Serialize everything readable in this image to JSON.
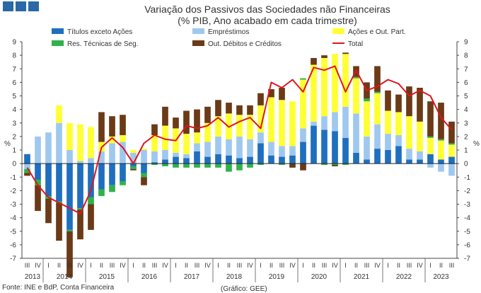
{
  "chart_data": {
    "type": "bar",
    "title": "Variação dos Passivos das Sociedades não Financeiras",
    "subtitle": "(% PIB, Ano acabado em cada trimestre)",
    "ylabel_left": "%",
    "ylabel_right": "%",
    "ylim": [
      -7,
      9
    ],
    "yticks": [
      -7,
      -6,
      -5,
      -4,
      -3,
      -2,
      -1,
      0,
      1,
      2,
      3,
      4,
      5,
      6,
      7,
      8,
      9
    ],
    "quarter_labels": [
      "III",
      "IV",
      "I",
      "II",
      "III",
      "IV",
      "I",
      "II",
      "III",
      "IV",
      "I",
      "II",
      "III",
      "IV",
      "I",
      "II",
      "III",
      "IV",
      "I",
      "II",
      "III",
      "IV",
      "I",
      "II",
      "III",
      "IV",
      "I",
      "II",
      "III",
      "IV",
      "I",
      "II",
      "III",
      "IV",
      "I",
      "II",
      "III",
      "IV",
      "I",
      "II",
      "III"
    ],
    "year_labels": [
      {
        "label": "2013",
        "start": 0,
        "end": 1
      },
      {
        "label": "2014",
        "start": 2,
        "end": 5
      },
      {
        "label": "2015",
        "start": 6,
        "end": 9
      },
      {
        "label": "2016",
        "start": 10,
        "end": 13
      },
      {
        "label": "2017",
        "start": 14,
        "end": 17
      },
      {
        "label": "2018",
        "start": 18,
        "end": 21
      },
      {
        "label": "2019",
        "start": 22,
        "end": 25
      },
      {
        "label": "2020",
        "start": 26,
        "end": 29
      },
      {
        "label": "2021",
        "start": 30,
        "end": 33
      },
      {
        "label": "2022",
        "start": 34,
        "end": 37
      },
      {
        "label": "2023",
        "start": 38,
        "end": 40
      }
    ],
    "series": [
      {
        "name": "Títulos exceto Ações",
        "color": "#1f6fbf",
        "values": [
          0.7,
          -1.2,
          -2.4,
          -2.8,
          -4.9,
          -3.3,
          -2.5,
          -1.9,
          -1.6,
          -1.3,
          -0.2,
          -0.7,
          0.1,
          0.3,
          0.5,
          0.4,
          0.9,
          0.5,
          0.7,
          0.6,
          0.4,
          0.5,
          1.5,
          0.6,
          0.5,
          0.6,
          1.6,
          2.8,
          2.5,
          2.4,
          1.9,
          0.8,
          0.3,
          1.1,
          1.0,
          1.3,
          0.3,
          0.3,
          0.7,
          0.3,
          0.5
        ]
      },
      {
        "name": "Empréstimos",
        "color": "#9fc8ef",
        "values": [
          -0.4,
          2.0,
          2.3,
          3.0,
          1.0,
          0.2,
          0.4,
          0.9,
          1.5,
          1.6,
          0.8,
          1.0,
          0.8,
          0.7,
          0.3,
          0.3,
          0.6,
          1.1,
          1.3,
          1.2,
          1.6,
          1.3,
          0.8,
          1.0,
          0.8,
          0.7,
          1.0,
          0.3,
          1.0,
          1.4,
          2.3,
          2.9,
          1.7,
          1.8,
          1.2,
          0.8,
          0.8,
          0.6,
          -0.3,
          -0.6,
          -0.9
        ]
      },
      {
        "name": "Ações e Out. Part.",
        "color": "#ffff33",
        "values": [
          0,
          0,
          0,
          1.3,
          2.0,
          2.7,
          2.3,
          0.7,
          0.5,
          0.5,
          0.2,
          0.1,
          1.2,
          1.8,
          1.8,
          1.5,
          0.8,
          1.4,
          1.5,
          1.9,
          1.6,
          1.8,
          2.0,
          3.3,
          3.4,
          3.3,
          3.6,
          4.2,
          4.3,
          4.3,
          3.9,
          2.6,
          2.6,
          2.3,
          1.7,
          1.7,
          2.4,
          2.2,
          1.2,
          1.4,
          0.9
        ]
      },
      {
        "name": "Res. Técnicas de Seg.",
        "color": "#2db34a",
        "values": [
          -0.3,
          -0.4,
          -0.2,
          -0.1,
          -0.1,
          -0.1,
          -0.5,
          -0.5,
          -0.5,
          -0.3,
          -0.2,
          -0.3,
          -0.1,
          -0.2,
          -0.3,
          -0.3,
          -0.3,
          -0.3,
          -0.3,
          -0.6,
          -0.5,
          -0.3,
          -0.1,
          0.0,
          -0.1,
          0.0,
          0.1,
          0.0,
          -0.1,
          -0.1,
          -0.1,
          0.1,
          0.2,
          0.1,
          0.0,
          0.0,
          0.0,
          0.0,
          0.1,
          0.1,
          0.1
        ]
      },
      {
        "name": "Out. Débitos e Créditos",
        "color": "#6b3a16",
        "values": [
          -0.2,
          -1.9,
          -1.8,
          -2.8,
          -3.4,
          -2.2,
          -1.9,
          2.2,
          1.5,
          1.5,
          -0.1,
          -0.6,
          0.8,
          1.4,
          0.8,
          1.7,
          1.7,
          1.2,
          1.2,
          0.8,
          0.7,
          0.7,
          0.9,
          0.6,
          0.9,
          -0.3,
          -0.5,
          0.5,
          0.2,
          -0.1,
          0.1,
          0.8,
          1.2,
          1.9,
          1.5,
          1.3,
          2.2,
          2.5,
          2.6,
          2.7,
          1.6
        ]
      }
    ],
    "line": {
      "name": "Total",
      "color": "#e0151d",
      "values": [
        -0.3,
        -1.6,
        -2.5,
        -2.9,
        -3.3,
        -3.7,
        -2.0,
        1.2,
        1.9,
        1.2,
        0.0,
        1.5,
        2.1,
        1.8,
        1.7,
        2.8,
        2.6,
        2.8,
        3.4,
        2.7,
        3.1,
        3.4,
        2.6,
        6.0,
        5.6,
        6.2,
        5.3,
        7.1,
        6.9,
        7.2,
        5.3,
        6.9,
        5.4,
        5.7,
        6.2,
        5.9,
        5.0,
        5.4,
        5.0,
        3.4,
        2.5
      ]
    },
    "legend": [
      {
        "name": "Títulos exceto Ações",
        "color": "#1f6fbf",
        "kind": "box"
      },
      {
        "name": "Empréstimos",
        "color": "#9fc8ef",
        "kind": "box"
      },
      {
        "name": "Ações e Out. Part.",
        "color": "#ffff33",
        "kind": "box"
      },
      {
        "name": "Res. Técnicas de Seg.",
        "color": "#2db34a",
        "kind": "box"
      },
      {
        "name": "Out. Débitos e Créditos",
        "color": "#6b3a16",
        "kind": "box"
      },
      {
        "name": "Total",
        "color": "#e0151d",
        "kind": "line"
      }
    ],
    "legend_position": "top",
    "grid": false
  },
  "footer": {
    "source": "Fonte: INE e BdP, Conta Financeira",
    "credit": "(Gráfico: GEE)"
  },
  "brand_color": "#2a68a8"
}
